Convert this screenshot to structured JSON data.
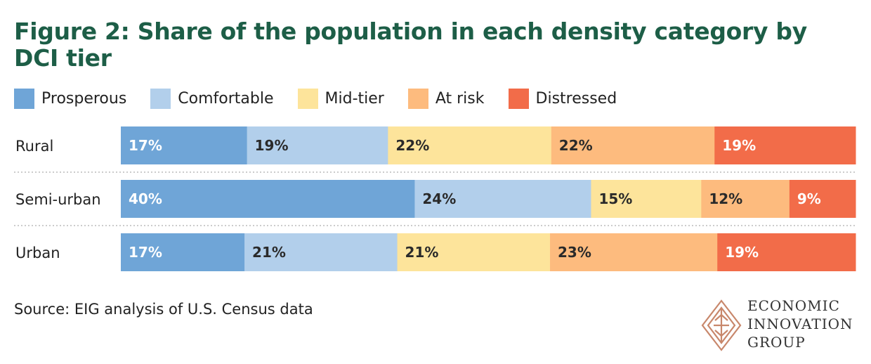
{
  "title": "Figure 2: Share of the population in each density category by DCI tier",
  "source": "Source: EIG analysis of U.S. Census data",
  "logo": {
    "line1": "ECONOMIC",
    "line2": "INNOVATION",
    "line3": "GROUP"
  },
  "colors": {
    "title": "#1d5e47",
    "prosperous": "#6fa5d7",
    "comfortable": "#b2cfeb",
    "mid_tier": "#fde49b",
    "at_risk": "#fdbb7e",
    "distressed": "#f26c49",
    "label_light": "#ffffff",
    "label_dark": "#2a2a2a",
    "divider": "#bbbbbb",
    "logo_brand": "#c8876b"
  },
  "legend": [
    {
      "name": "Prosperous",
      "color": "#6fa5d7"
    },
    {
      "name": "Comfortable",
      "color": "#b2cfeb"
    },
    {
      "name": "Mid-tier",
      "color": "#fde49b"
    },
    {
      "name": "At risk",
      "color": "#fdbb7e"
    },
    {
      "name": "Distressed",
      "color": "#f26c49"
    }
  ],
  "chart_data": {
    "type": "bar",
    "orientation": "horizontal",
    "stacked": true,
    "title": "Figure 2: Share of the population in each density category by DCI tier",
    "categories": [
      "Rural",
      "Semi-urban",
      "Urban"
    ],
    "series": [
      {
        "name": "Prosperous",
        "values": [
          17,
          40,
          17
        ],
        "labels": [
          "17%",
          "40%",
          "17%"
        ]
      },
      {
        "name": "Comfortable",
        "values": [
          19,
          24,
          21
        ],
        "labels": [
          "19%",
          "24%",
          "21%"
        ]
      },
      {
        "name": "Mid-tier",
        "values": [
          22,
          15,
          21
        ],
        "labels": [
          "22%",
          "15%",
          "21%"
        ]
      },
      {
        "name": "At risk",
        "values": [
          22,
          12,
          23
        ],
        "labels": [
          "22%",
          "12%",
          "23%"
        ]
      },
      {
        "name": "Distressed",
        "values": [
          19,
          9,
          19
        ],
        "labels": [
          "19%",
          "9%",
          "19%"
        ]
      }
    ],
    "xlabel": "",
    "ylabel": "",
    "xlim": [
      0,
      100
    ],
    "grid": false,
    "legend_position": "top-left"
  }
}
